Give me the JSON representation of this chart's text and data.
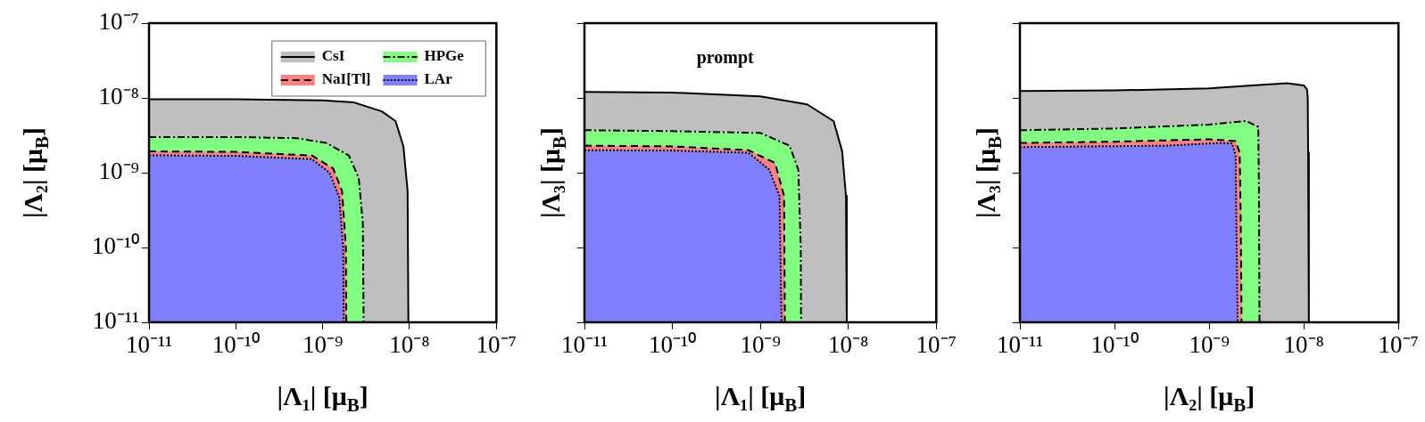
{
  "chart_data": [
    {
      "type": "area",
      "xlabel": "|Λ₁| [μ$_{B}$]",
      "ylabel": "|Λ₂| [μ$_{B}$]",
      "log": "xy",
      "grid": false,
      "legend": "top right",
      "xlim": [
        1e-11,
        1e-07
      ],
      "ylim": [
        1e-11,
        1e-07
      ],
      "xticks": [
        {
          "value": 1e-11,
          "label": "10⁻¹¹"
        },
        {
          "value": 1e-10,
          "label": "10⁻¹⁰"
        },
        {
          "value": 1e-09,
          "label": "10⁻⁹"
        },
        {
          "value": 1e-08,
          "label": "10⁻⁸"
        },
        {
          "value": 1e-07,
          "label": "10⁻⁷"
        }
      ],
      "yticks": [
        {
          "value": 1e-11,
          "label": "10⁻¹¹"
        },
        {
          "value": 1e-10,
          "label": "10⁻¹⁰"
        },
        {
          "value": 1e-09,
          "label": "10⁻⁹"
        },
        {
          "value": 1e-08,
          "label": "10⁻⁸"
        },
        {
          "value": 1e-07,
          "label": "10⁻⁷"
        }
      ],
      "series": [
        {
          "name": "CsI",
          "color": "#bfbfbf",
          "line_style": "solid",
          "x": [
            1e-11,
            1e-10,
            1e-09,
            2.3e-09,
            4.8e-09,
            6.9e-09,
            8.5e-09,
            9.5e-09,
            9.7e-09
          ],
          "values": [
            9.6e-09,
            9.6e-09,
            9.3e-09,
            8.7e-09,
            6.6e-09,
            4.9e-09,
            2.25e-09,
            5.7e-10,
            1e-11
          ]
        },
        {
          "name": "HPGe",
          "color": "#80ff80",
          "line_style": "dashdot",
          "x": [
            1e-11,
            1e-10,
            5e-10,
            1.1e-09,
            2e-09,
            2.6e-09,
            2.9e-09,
            2.96e-09
          ],
          "values": [
            3e-09,
            3e-09,
            2.9e-09,
            2.5e-09,
            1.7e-09,
            8.5e-10,
            2.1e-10,
            1e-11
          ]
        },
        {
          "name": "NaI[Tl]",
          "color": "#ff8080",
          "line_style": "dashed",
          "x": [
            1e-11,
            1e-10,
            7.5e-10,
            1.32e-09,
            1.67e-09,
            1.85e-09,
            1.87e-09
          ],
          "values": [
            1.93e-09,
            1.9e-09,
            1.7e-09,
            1.14e-09,
            5.7e-10,
            1e-10,
            1e-11
          ]
        },
        {
          "name": "LAr",
          "color": "#8080ff",
          "line_style": "dotted",
          "x": [
            1e-11,
            1e-10,
            7.5e-10,
            1.2e-09,
            1.55e-09,
            1.72e-09,
            1.75e-09
          ],
          "values": [
            1.71e-09,
            1.68e-09,
            1.52e-09,
            1e-09,
            4.7e-10,
            1e-10,
            1e-11
          ]
        }
      ]
    },
    {
      "type": "area",
      "xlabel": "|Λ₁| [μ$_{B}$]",
      "ylabel": "|Λ₃| [μ$_{B}$]",
      "log": "xy",
      "grid": false,
      "tick_labels": "x",
      "annotations": [
        "prompt"
      ],
      "xlim": [
        1e-11,
        1e-07
      ],
      "ylim": [
        1e-11,
        1e-07
      ],
      "xticks": [
        {
          "value": 1e-11,
          "label": "10⁻¹¹"
        },
        {
          "value": 1e-10,
          "label": "10⁻¹⁰"
        },
        {
          "value": 1e-09,
          "label": "10⁻⁹"
        },
        {
          "value": 1e-08,
          "label": "10⁻⁸"
        },
        {
          "value": 1e-07,
          "label": "10⁻⁷"
        }
      ],
      "yticks": [
        1e-11,
        1e-10,
        1e-09,
        1e-08,
        1e-07
      ],
      "series": [
        {
          "color": "#bfbfbf",
          "line_style": "solid",
          "x": [
            1e-11,
            1e-10,
            1e-09,
            3.4e-09,
            6.8e-09,
            8.5e-09,
            9.4e-09,
            9.6e-09
          ],
          "values": [
            1.2e-08,
            1.18e-08,
            1.05e-08,
            8.2e-09,
            4.9e-09,
            1.95e-09,
            4.9e-10,
            1e-11
          ]
        },
        {
          "color": "#80ff80",
          "line_style": "dashdot",
          "x": [
            1e-11,
            1e-10,
            1e-09,
            2.15e-09,
            2.7e-09,
            2.88e-09,
            2.9e-09
          ],
          "values": [
            3.7e-09,
            3.6e-09,
            3.4e-09,
            2.3e-09,
            1.1e-09,
            1e-10,
            1e-11
          ]
        },
        {
          "color": "#ff8080",
          "line_style": "dashed",
          "x": [
            1e-11,
            1e-10,
            7.3e-10,
            1.47e-09,
            1.86e-09,
            1.9e-09
          ],
          "values": [
            2.3e-09,
            2.25e-09,
            2e-09,
            1.35e-09,
            4.9e-10,
            1e-11
          ]
        },
        {
          "color": "#8080ff",
          "line_style": "dotted",
          "x": [
            1e-11,
            1e-10,
            7.3e-10,
            1.26e-09,
            1.65e-09,
            1.74e-09
          ],
          "values": [
            2e-09,
            1.98e-09,
            1.85e-09,
            1.1e-09,
            4.9e-10,
            1e-11
          ]
        }
      ]
    },
    {
      "type": "area",
      "xlabel": "|Λ₂| [μ$_{B}$]",
      "ylabel": "|Λ₃| [μ$_{B}$]",
      "log": "xy",
      "grid": false,
      "tick_labels": "x",
      "xlim": [
        1e-11,
        1e-07
      ],
      "ylim": [
        1e-11,
        1e-07
      ],
      "xticks": [
        {
          "value": 1e-11,
          "label": "10⁻¹¹"
        },
        {
          "value": 1e-10,
          "label": "10⁻¹⁰"
        },
        {
          "value": 1e-09,
          "label": "10⁻⁹"
        },
        {
          "value": 1e-08,
          "label": "10⁻⁸"
        },
        {
          "value": 1e-07,
          "label": "10⁻⁷"
        }
      ],
      "yticks": [
        1e-11,
        1e-10,
        1e-09,
        1e-08,
        1e-07
      ],
      "series": [
        {
          "color": "#bfbfbf",
          "line_style": "solid",
          "x": [
            1e-11,
            1e-10,
            1e-09,
            3.6e-09,
            6.7e-09,
            1e-08,
            1.08e-08,
            1.1e-08,
            1.11e-08,
            1.13e-08
          ],
          "values": [
            1.24e-08,
            1.26e-08,
            1.34e-08,
            1.5e-08,
            1.57e-08,
            1.47e-08,
            1.3e-08,
            1e-08,
            1.86e-09,
            1e-11
          ]
        },
        {
          "color": "#80ff80",
          "line_style": "dashdot",
          "x": [
            1e-11,
            1e-10,
            1e-09,
            2.46e-09,
            3.3e-09,
            3.35e-09,
            3.4e-09
          ],
          "values": [
            3.7e-09,
            3.9e-09,
            4.4e-09,
            4.9e-09,
            4.1e-09,
            7.3e-10,
            1e-11
          ]
        },
        {
          "color": "#ff8080",
          "line_style": "dashed",
          "x": [
            1e-11,
            1e-10,
            1e-09,
            1.9e-09,
            2.1e-09,
            2.15e-09,
            2.2e-09
          ],
          "values": [
            2.5e-09,
            2.6e-09,
            2.8e-09,
            2.65e-09,
            1.85e-09,
            2.9e-10,
            1e-11
          ]
        },
        {
          "color": "#8080ff",
          "line_style": "dotted",
          "x": [
            1e-11,
            3.5e-10,
            1.3e-09,
            1.75e-09,
            1.9e-09,
            1.95e-09,
            2e-09
          ],
          "values": [
            2.2e-09,
            2.3e-09,
            2.5e-09,
            2.47e-09,
            1.7e-09,
            1.1e-10,
            1e-11
          ]
        }
      ]
    }
  ]
}
